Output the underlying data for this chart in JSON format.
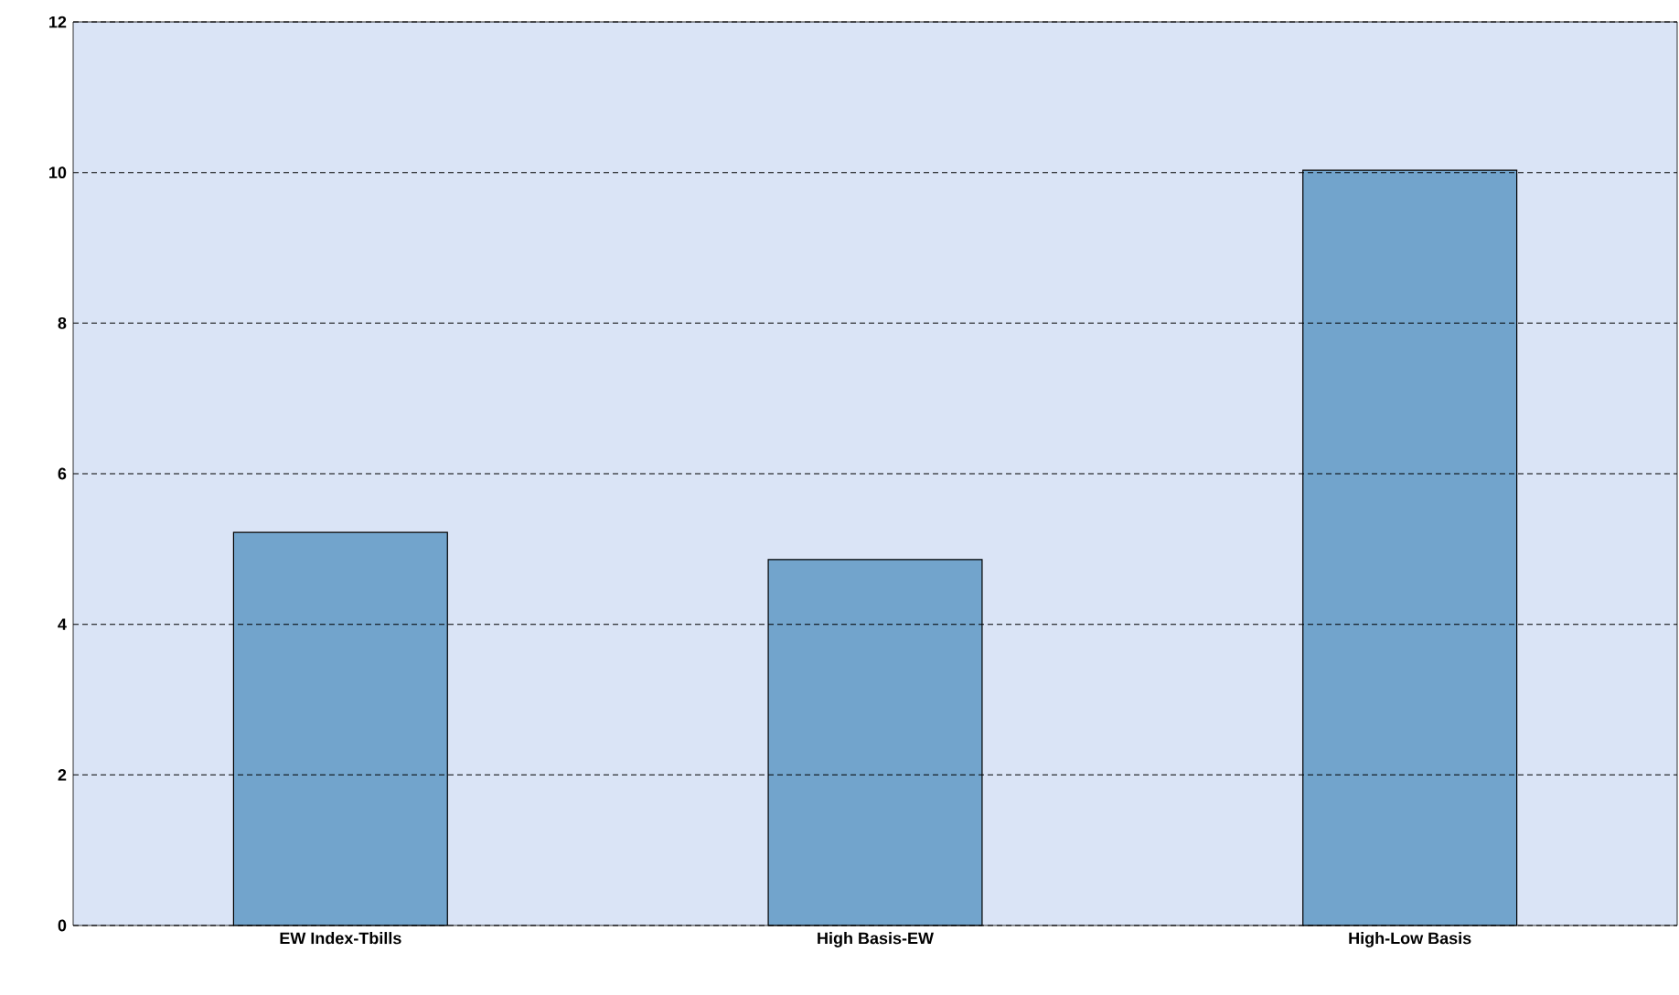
{
  "chart_data": {
    "type": "bar",
    "categories": [
      "EW Index-Tbills",
      "High Basis-EW",
      "High-Low Basis"
    ],
    "values": [
      5.22,
      4.86,
      10.03
    ],
    "color": "#72a4cc",
    "ylim": [
      0,
      12
    ],
    "yticks": [
      0,
      2,
      4,
      6,
      8,
      10,
      12
    ],
    "grid": "y"
  }
}
